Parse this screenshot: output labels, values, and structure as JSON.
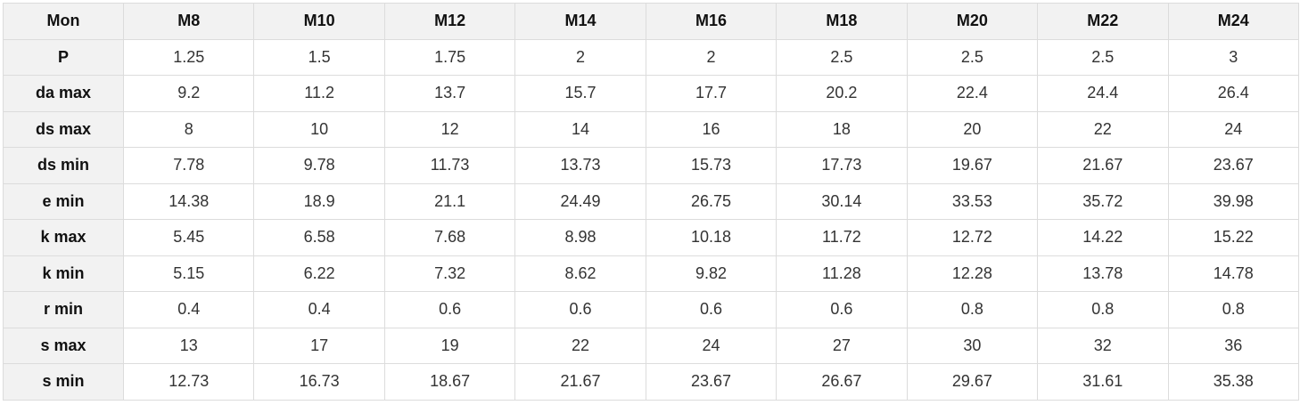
{
  "table": {
    "headers": [
      "Mon",
      "M8",
      "M10",
      "M12",
      "M14",
      "M16",
      "M18",
      "M20",
      "M22",
      "M24"
    ],
    "rows": [
      {
        "label": "P",
        "values": [
          "1.25",
          "1.5",
          "1.75",
          "2",
          "2",
          "2.5",
          "2.5",
          "2.5",
          "3"
        ]
      },
      {
        "label": "da max",
        "values": [
          "9.2",
          "11.2",
          "13.7",
          "15.7",
          "17.7",
          "20.2",
          "22.4",
          "24.4",
          "26.4"
        ]
      },
      {
        "label": "ds max",
        "values": [
          "8",
          "10",
          "12",
          "14",
          "16",
          "18",
          "20",
          "22",
          "24"
        ]
      },
      {
        "label": "ds min",
        "values": [
          "7.78",
          "9.78",
          "11.73",
          "13.73",
          "15.73",
          "17.73",
          "19.67",
          "21.67",
          "23.67"
        ]
      },
      {
        "label": "e min",
        "values": [
          "14.38",
          "18.9",
          "21.1",
          "24.49",
          "26.75",
          "30.14",
          "33.53",
          "35.72",
          "39.98"
        ]
      },
      {
        "label": "k max",
        "values": [
          "5.45",
          "6.58",
          "7.68",
          "8.98",
          "10.18",
          "11.72",
          "12.72",
          "14.22",
          "15.22"
        ]
      },
      {
        "label": "k min",
        "values": [
          "5.15",
          "6.22",
          "7.32",
          "8.62",
          "9.82",
          "11.28",
          "12.28",
          "13.78",
          "14.78"
        ]
      },
      {
        "label": "r min",
        "values": [
          "0.4",
          "0.4",
          "0.6",
          "0.6",
          "0.6",
          "0.6",
          "0.8",
          "0.8",
          "0.8"
        ]
      },
      {
        "label": "s max",
        "values": [
          "13",
          "17",
          "19",
          "22",
          "24",
          "27",
          "30",
          "32",
          "36"
        ]
      },
      {
        "label": "s min",
        "values": [
          "12.73",
          "16.73",
          "18.67",
          "21.67",
          "23.67",
          "26.67",
          "29.67",
          "31.61",
          "35.38"
        ]
      }
    ]
  },
  "colors": {
    "header_bg": "#f2f2f2",
    "border": "#dcdcdc",
    "cell_bg": "#ffffff"
  }
}
